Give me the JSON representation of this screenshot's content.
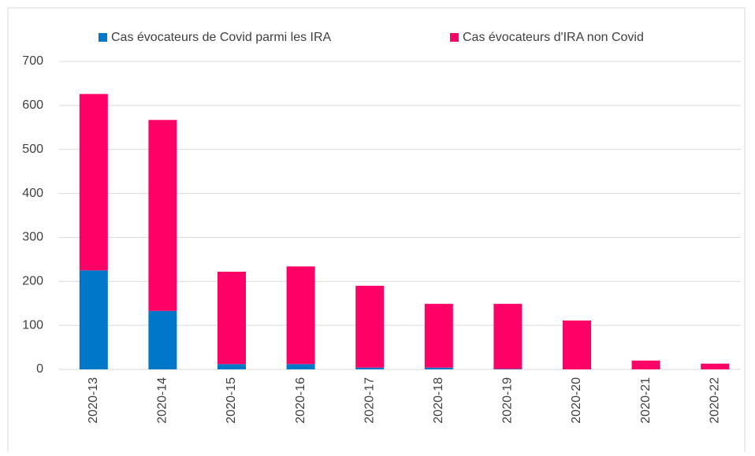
{
  "chart_data": {
    "type": "bar",
    "stacked": true,
    "categories": [
      "2020-13",
      "2020-14",
      "2020-15",
      "2020-16",
      "2020-17",
      "2020-18",
      "2020-19",
      "2020-20",
      "2020-21",
      "2020-22"
    ],
    "series": [
      {
        "name": "Cas évocateurs de Covid parmi les IRA",
        "color": "#0077c8",
        "values": [
          225,
          133,
          12,
          12,
          4,
          4,
          1,
          0,
          0,
          0
        ]
      },
      {
        "name": "Cas évocateurs d'IRA non Covid",
        "color": "#ff0066",
        "values": [
          401,
          434,
          210,
          222,
          186,
          145,
          148,
          111,
          20,
          13
        ]
      }
    ],
    "ylim": [
      0,
      700
    ],
    "yticks": [
      0,
      100,
      200,
      300,
      400,
      500,
      600,
      700
    ],
    "grid": true,
    "legend": "top"
  }
}
